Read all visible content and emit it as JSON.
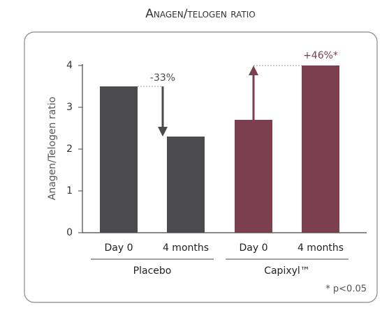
{
  "chart_data": {
    "type": "bar",
    "title": "Anagen/telogen ratio",
    "y_label": "Anagen/Telogen ratio",
    "groups": [
      {
        "name": "Placebo",
        "color": "#4b4b4d",
        "categories": [
          "Day 0",
          "4 months"
        ],
        "values": [
          3.5,
          2.3
        ],
        "change_label": "-33%"
      },
      {
        "name": "Capixyl™",
        "color": "#7b3f4f",
        "categories": [
          "Day 0",
          "4 months"
        ],
        "values": [
          2.7,
          4.0
        ],
        "change_label": "+46%*"
      }
    ],
    "ylim": [
      0,
      4
    ],
    "yticks": [
      0,
      1,
      2,
      3,
      4
    ],
    "footnote": "* p<0.05"
  }
}
